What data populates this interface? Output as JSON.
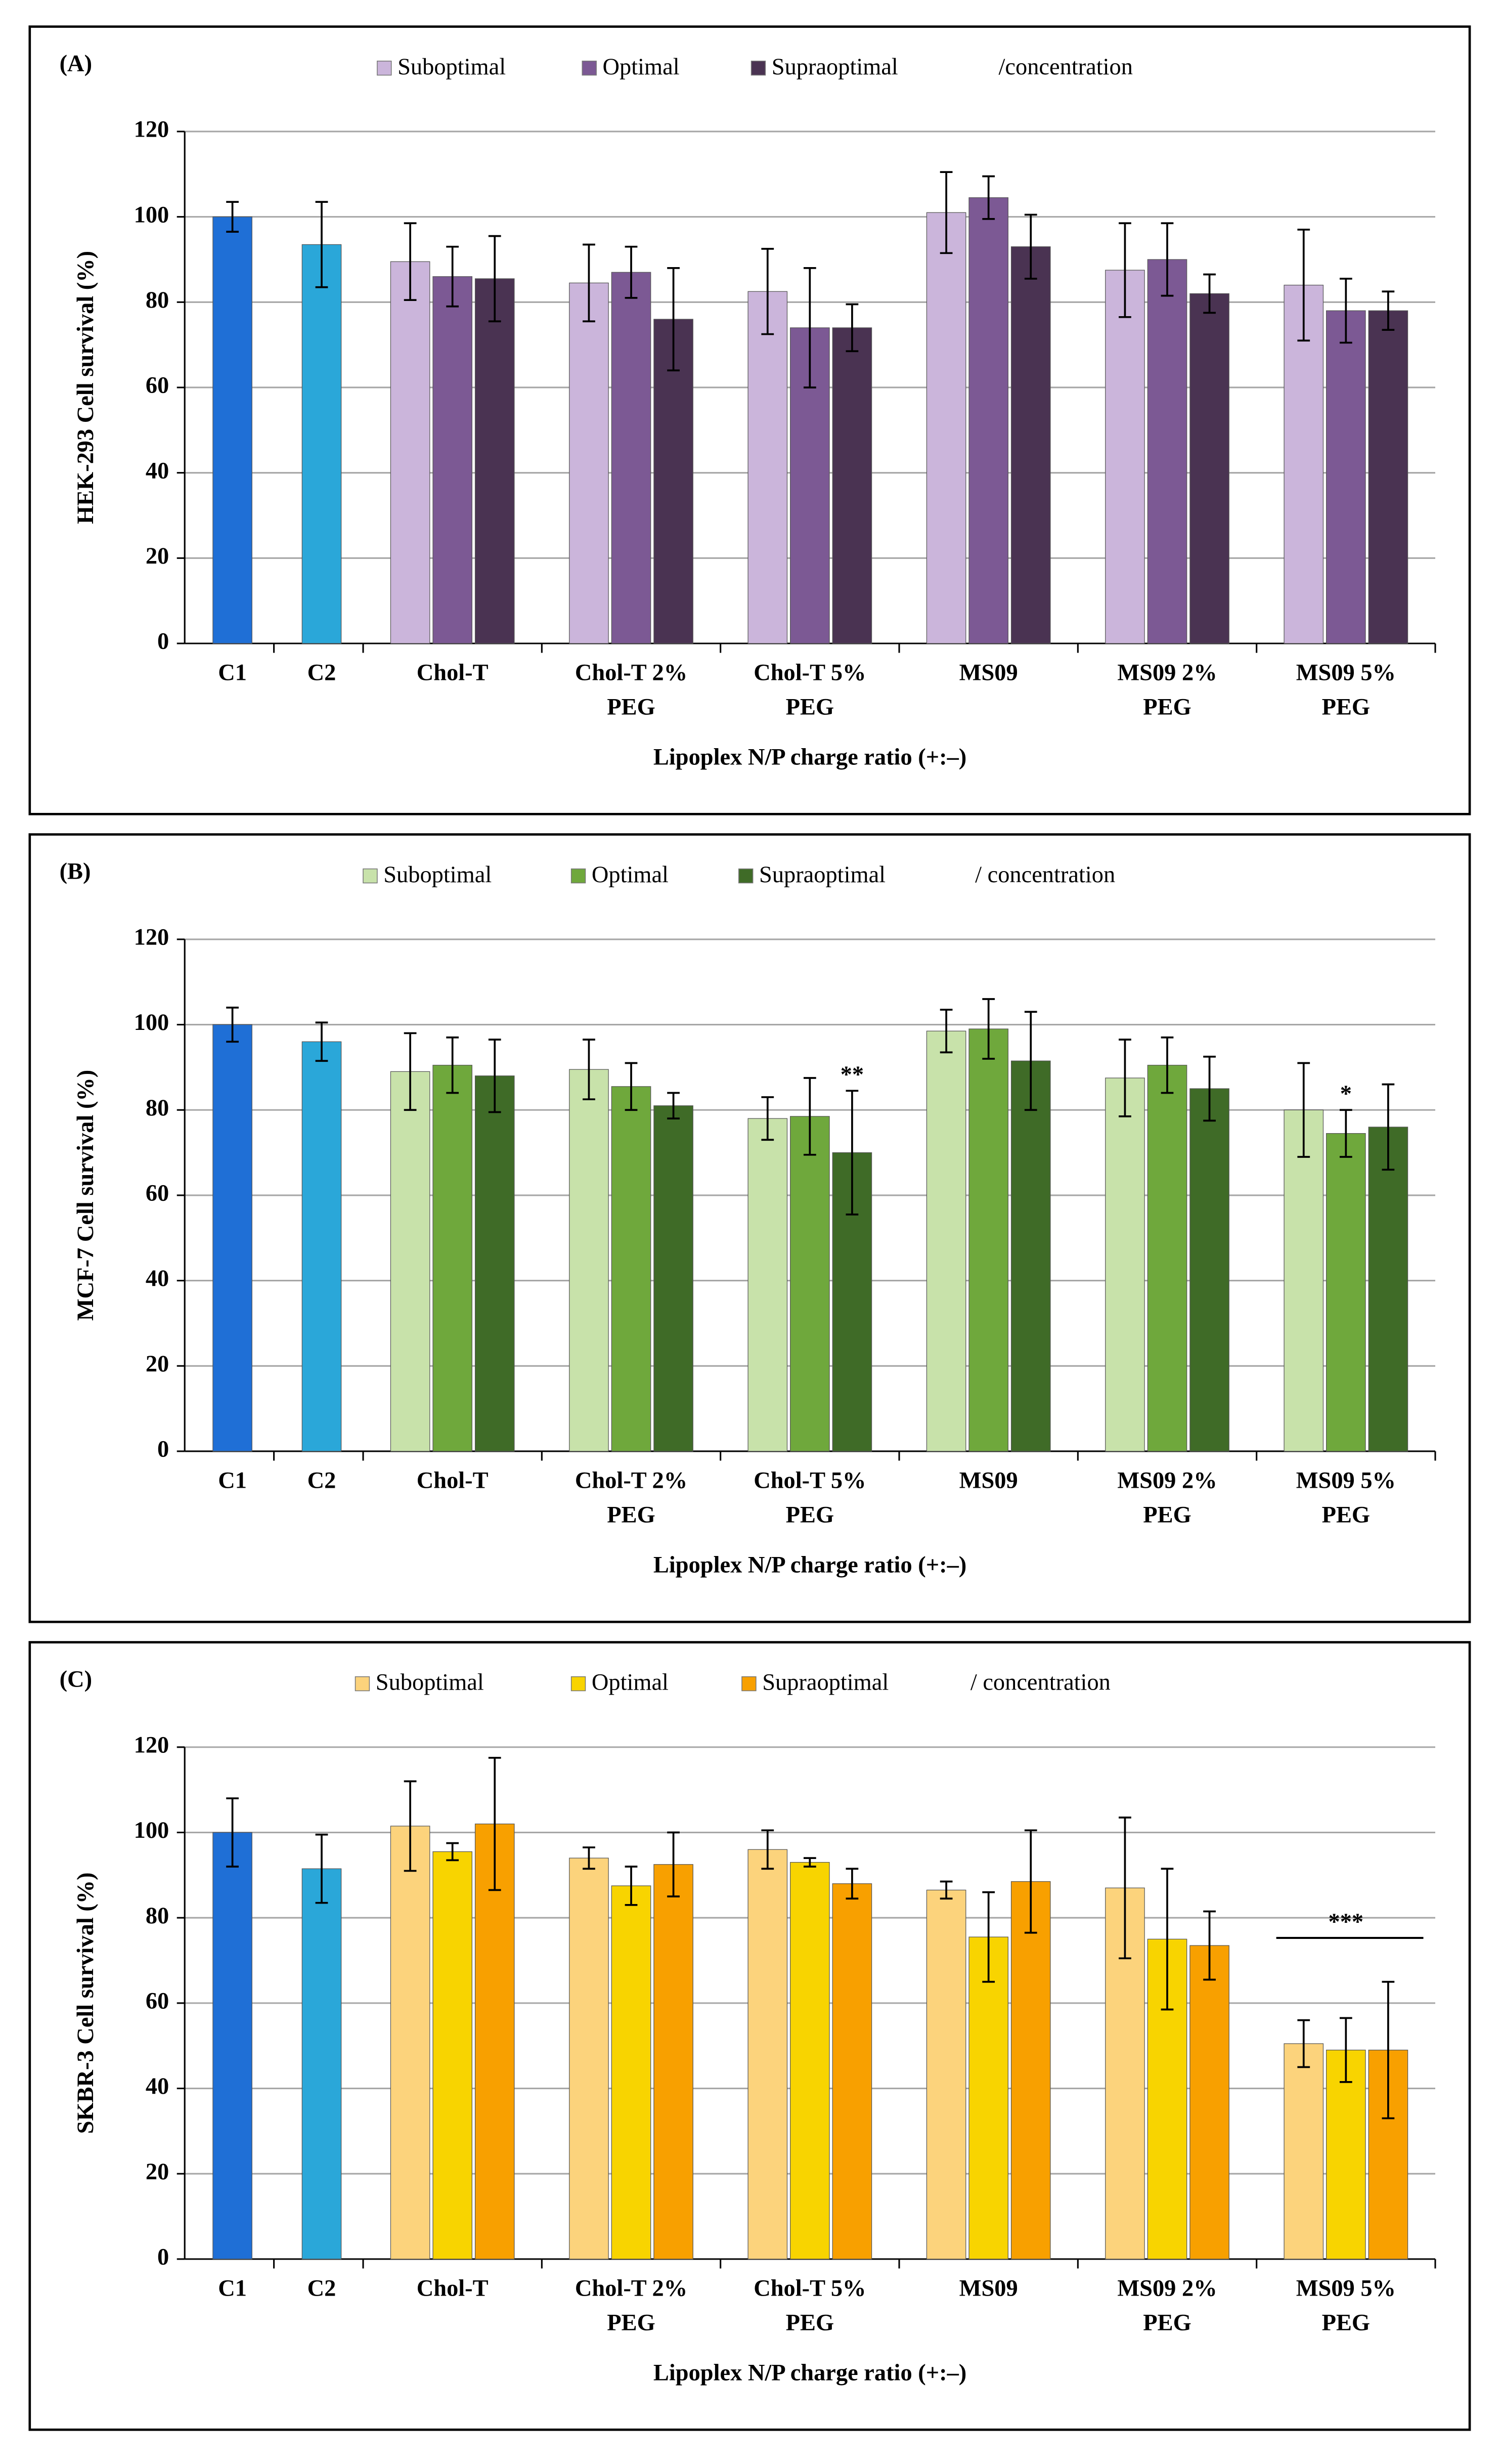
{
  "chart_data": [
    {
      "type": "bar",
      "panel": "(A)",
      "ylabel": "HEK-293 Cell survival (%)",
      "xlabel": "Lipoplex N/P charge ratio (+:–)",
      "legend_suffix": "/concentration",
      "ylim": [
        0,
        120
      ],
      "yticks": [
        0,
        20,
        40,
        60,
        80,
        100,
        120
      ],
      "grid": true,
      "controls": {
        "categories": [
          "C1",
          "C2"
        ],
        "values": [
          100,
          93.5
        ],
        "errors": [
          3.5,
          10
        ],
        "colors": [
          "#1f6fd6",
          "#2aa7d9"
        ]
      },
      "categories": [
        [
          "Chol-T"
        ],
        [
          "Chol-T 2%",
          "PEG"
        ],
        [
          "Chol-T 5%",
          "PEG"
        ],
        [
          "MS09"
        ],
        [
          "MS09 2%",
          "PEG"
        ],
        [
          "MS09 5%",
          "PEG"
        ]
      ],
      "series": [
        {
          "name": "Suboptimal",
          "color": "#cbb5db",
          "values": [
            89.5,
            84.5,
            82.5,
            101,
            87.5,
            84
          ],
          "errors": [
            9,
            9,
            10,
            9.5,
            11,
            13
          ]
        },
        {
          "name": "Optimal",
          "color": "#7c5994",
          "values": [
            86,
            87,
            74,
            104.5,
            90,
            78
          ],
          "errors": [
            7,
            6,
            14,
            5,
            8.5,
            7.5
          ]
        },
        {
          "name": "Supraoptimal",
          "color": "#4a3352",
          "values": [
            85.5,
            76,
            74,
            93,
            82,
            78
          ],
          "errors": [
            10,
            12,
            5.5,
            7.5,
            4.5,
            4.5
          ]
        }
      ],
      "annotations": []
    },
    {
      "type": "bar",
      "panel": "(B)",
      "ylabel": "MCF-7 Cell survival (%)",
      "xlabel": "Lipoplex N/P charge ratio (+:–)",
      "legend_suffix": "/ concentration",
      "ylim": [
        0,
        120
      ],
      "yticks": [
        0,
        20,
        40,
        60,
        80,
        100,
        120
      ],
      "grid": true,
      "controls": {
        "categories": [
          "C1",
          "C2"
        ],
        "values": [
          100,
          96
        ],
        "errors": [
          4,
          4.5
        ],
        "colors": [
          "#1f6fd6",
          "#2aa7d9"
        ]
      },
      "categories": [
        [
          "Chol-T"
        ],
        [
          "Chol-T 2%",
          "PEG"
        ],
        [
          "Chol-T 5%",
          "PEG"
        ],
        [
          "MS09"
        ],
        [
          "MS09 2%",
          "PEG"
        ],
        [
          "MS09 5%",
          "PEG"
        ]
      ],
      "series": [
        {
          "name": "Suboptimal",
          "color": "#c8e2aa",
          "values": [
            89,
            89.5,
            78,
            98.5,
            87.5,
            80
          ],
          "errors": [
            9,
            7,
            5,
            5,
            9,
            11
          ]
        },
        {
          "name": "Optimal",
          "color": "#6fa83c",
          "values": [
            90.5,
            85.5,
            78.5,
            99,
            90.5,
            74.5
          ],
          "errors": [
            6.5,
            5.5,
            9,
            7,
            6.5,
            5.5
          ]
        },
        {
          "name": "Supraoptimal",
          "color": "#3f6b27",
          "values": [
            88,
            81,
            70,
            91.5,
            85,
            76
          ],
          "errors": [
            8.5,
            3,
            14.5,
            11.5,
            7.5,
            10
          ]
        }
      ],
      "annotations": [
        {
          "text": "**",
          "category": 2,
          "series": 2
        },
        {
          "text": "*",
          "category": 5,
          "series": 1
        }
      ]
    },
    {
      "type": "bar",
      "panel": "(C)",
      "ylabel": "SKBR-3 Cell survival (%)",
      "xlabel": "Lipoplex N/P charge ratio (+:–)",
      "legend_suffix": "/ concentration",
      "ylim": [
        0,
        120
      ],
      "yticks": [
        0,
        20,
        40,
        60,
        80,
        100,
        120
      ],
      "grid": true,
      "controls": {
        "categories": [
          "C1",
          "C2"
        ],
        "values": [
          100,
          91.5
        ],
        "errors": [
          8,
          8
        ],
        "colors": [
          "#1f6fd6",
          "#2aa7d9"
        ]
      },
      "categories": [
        [
          "Chol-T"
        ],
        [
          "Chol-T 2%",
          "PEG"
        ],
        [
          "Chol-T 5%",
          "PEG"
        ],
        [
          "MS09"
        ],
        [
          "MS09 2%",
          "PEG"
        ],
        [
          "MS09 5%",
          "PEG"
        ]
      ],
      "series": [
        {
          "name": "Suboptimal",
          "color": "#fcd37c",
          "values": [
            101.5,
            94,
            96,
            86.5,
            87,
            50.5
          ],
          "errors": [
            10.5,
            2.5,
            4.5,
            2,
            16.5,
            5.5
          ]
        },
        {
          "name": "Optimal",
          "color": "#f8d400",
          "values": [
            95.5,
            87.5,
            93,
            75.5,
            75,
            49
          ],
          "errors": [
            2,
            4.5,
            1,
            10.5,
            16.5,
            7.5
          ]
        },
        {
          "name": "Supraoptimal",
          "color": "#f8a000",
          "values": [
            102,
            92.5,
            88,
            88.5,
            73.5,
            49
          ],
          "errors": [
            15.5,
            7.5,
            3.5,
            12,
            8,
            16
          ]
        }
      ],
      "annotations": [
        {
          "text": "***",
          "category": 5
        }
      ]
    }
  ]
}
